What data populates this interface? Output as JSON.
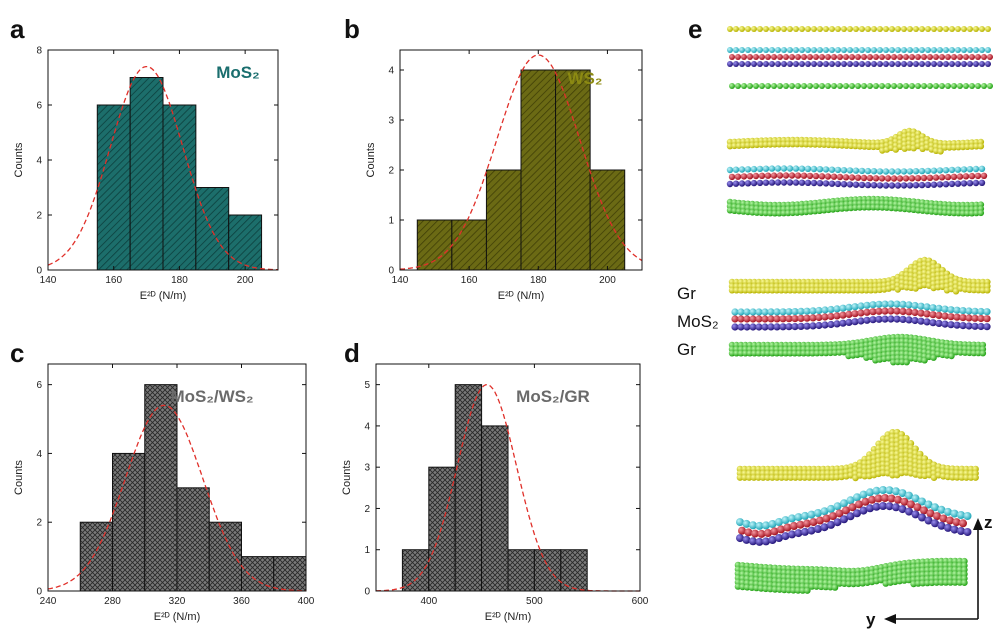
{
  "chart_data": [
    {
      "type": "bar",
      "panel": "a",
      "label": "MoS₂",
      "label_color": "#1a6e6e",
      "bar_color": "#1c6e6b",
      "pattern": "diagonal",
      "xlabel": "E²ᴰ (N/m)",
      "ylabel": "Counts",
      "xlim": [
        140,
        210
      ],
      "ylim": [
        0,
        8
      ],
      "xticks": [
        140,
        160,
        180,
        200
      ],
      "yticks": [
        0,
        2,
        4,
        6,
        8
      ],
      "bin_width": 10,
      "bins": [
        {
          "x": 160,
          "value": 6
        },
        {
          "x": 170,
          "value": 7
        },
        {
          "x": 180,
          "value": 6
        },
        {
          "x": 190,
          "value": 3
        },
        {
          "x": 200,
          "value": 2
        }
      ],
      "fit": {
        "peak": 7.4,
        "center": 170,
        "sigma": 11
      }
    },
    {
      "type": "bar",
      "panel": "b",
      "label": "WS₂",
      "label_color": "#8c8a12",
      "bar_color": "#6b6a14",
      "pattern": "diagonal",
      "xlabel": "E²ᴰ (N/m)",
      "ylabel": "Counts",
      "xlim": [
        140,
        210
      ],
      "ylim": [
        0,
        4.4
      ],
      "xticks": [
        140,
        160,
        180,
        200
      ],
      "yticks": [
        0,
        1,
        2,
        3,
        4
      ],
      "bin_width": 10,
      "bins": [
        {
          "x": 150,
          "value": 1
        },
        {
          "x": 160,
          "value": 1
        },
        {
          "x": 170,
          "value": 2
        },
        {
          "x": 180,
          "value": 4
        },
        {
          "x": 190,
          "value": 4
        },
        {
          "x": 200,
          "value": 2
        }
      ],
      "fit": {
        "peak": 4.3,
        "center": 180,
        "sigma": 12
      }
    },
    {
      "type": "bar",
      "panel": "c",
      "label": "MoS₂/WS₂",
      "label_color": "#6a6a6a",
      "bar_color": "#5e5e5e",
      "pattern": "crosshatch",
      "xlabel": "E²ᴰ (N/m)",
      "ylabel": "Counts",
      "xlim": [
        240,
        400
      ],
      "ylim": [
        0,
        6.6
      ],
      "xticks": [
        240,
        280,
        320,
        360,
        400
      ],
      "yticks": [
        0,
        2,
        4,
        6
      ],
      "bin_width": 20,
      "bins": [
        {
          "x": 270,
          "value": 2
        },
        {
          "x": 290,
          "value": 4
        },
        {
          "x": 310,
          "value": 6
        },
        {
          "x": 330,
          "value": 3
        },
        {
          "x": 350,
          "value": 2
        },
        {
          "x": 370,
          "value": 1
        },
        {
          "x": 390,
          "value": 1
        }
      ],
      "fit": {
        "peak": 5.4,
        "center": 312,
        "sigma": 24
      }
    },
    {
      "type": "bar",
      "panel": "d",
      "label": "MoS₂/GR",
      "label_color": "#6a6a6a",
      "bar_color": "#5e5e5e",
      "pattern": "crosshatch",
      "xlabel": "E²ᴰ (N/m)",
      "ylabel": "Counts",
      "xlim": [
        350,
        600
      ],
      "ylim": [
        0,
        5.5
      ],
      "xticks": [
        400,
        500,
        600
      ],
      "yticks": [
        0,
        1,
        2,
        3,
        4,
        5
      ],
      "bin_width": 25,
      "bins": [
        {
          "x": 387.5,
          "value": 1
        },
        {
          "x": 412.5,
          "value": 3
        },
        {
          "x": 437.5,
          "value": 5
        },
        {
          "x": 462.5,
          "value": 4
        },
        {
          "x": 487.5,
          "value": 1
        },
        {
          "x": 512.5,
          "value": 1
        },
        {
          "x": 537.5,
          "value": 1
        }
      ],
      "fit": {
        "peak": 5.0,
        "center": 455,
        "sigma": 28
      }
    }
  ],
  "panel_e": {
    "letter": "e",
    "labels": [
      "Gr",
      "MoS₂",
      "Gr"
    ],
    "axis_z": "z",
    "axis_y": "y",
    "colors": {
      "graphene_top": "#e6e619",
      "sulfur_top": "#4fd0e0",
      "molybdenum": "#d42a3a",
      "sulfur_bottom": "#3a2ab0",
      "graphene_bottom": "#3ae02a"
    }
  }
}
